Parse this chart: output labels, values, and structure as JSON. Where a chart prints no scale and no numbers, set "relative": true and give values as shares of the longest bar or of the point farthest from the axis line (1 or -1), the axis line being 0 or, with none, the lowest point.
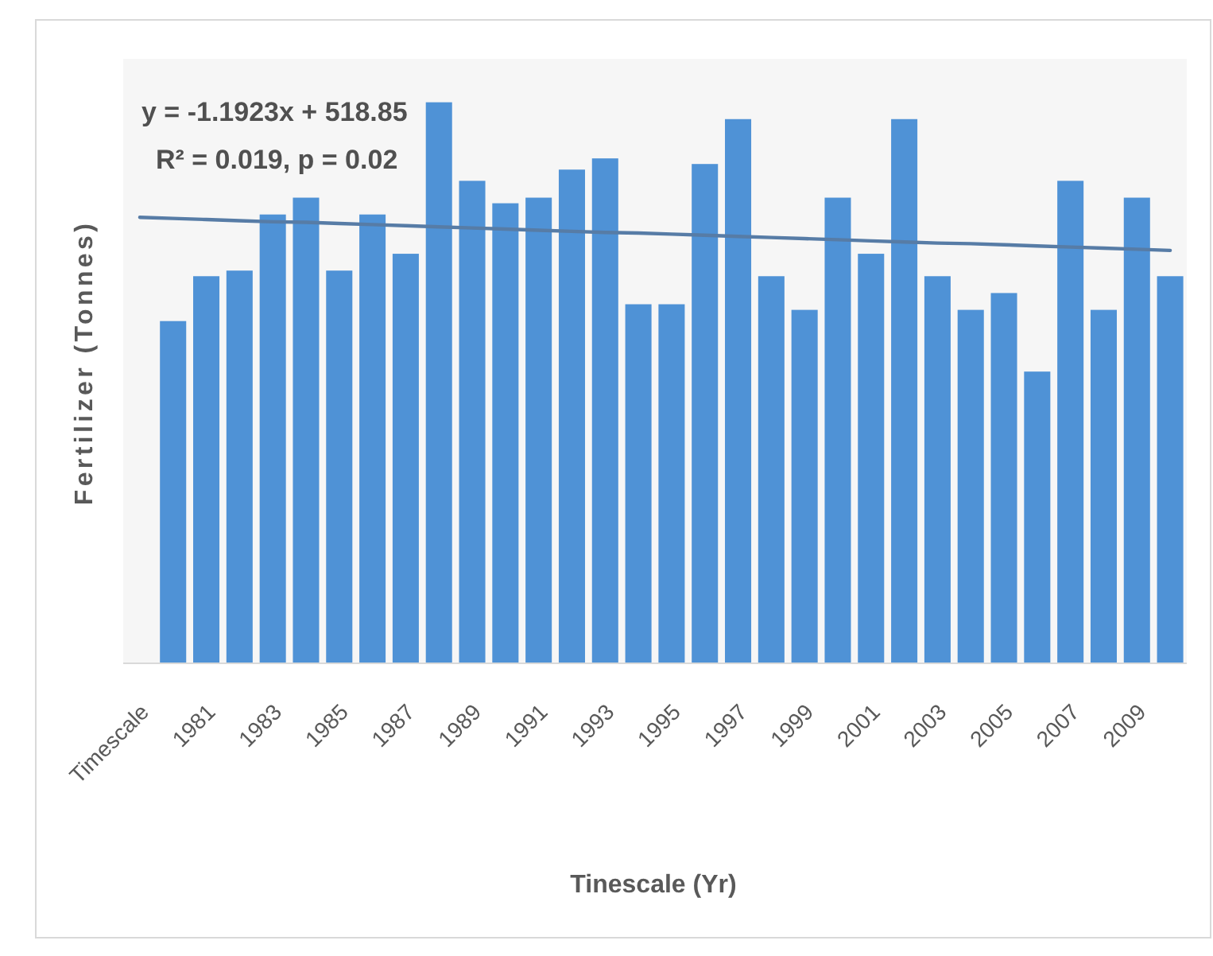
{
  "chart_data": {
    "type": "bar",
    "relative": true,
    "xlabel": "Tinescale (Yr)",
    "ylabel": "Fertilizer (Tonnes)",
    "annotations": [
      "y = -1.1923x + 518.85",
      "R² = 0.019, p = 0.02"
    ],
    "categories": [
      "Timescale",
      null,
      "1981",
      null,
      "1983",
      null,
      "1985",
      null,
      "1987",
      null,
      "1989",
      null,
      "1991",
      null,
      "1993",
      null,
      "1995",
      null,
      "1997",
      null,
      "1999",
      null,
      "2001",
      null,
      "2003",
      null,
      "2005",
      null,
      "2007",
      null,
      "2009",
      null
    ],
    "series": [
      {
        "color": "#4f92d6",
        "values": [
          null,
          0.61,
          0.69,
          0.7,
          0.8,
          0.83,
          0.7,
          0.8,
          0.73,
          1,
          0.86,
          0.82,
          0.83,
          0.88,
          0.9,
          0.64,
          0.64,
          0.89,
          0.97,
          0.69,
          0.63,
          0.83,
          0.73,
          0.97,
          0.69,
          0.63,
          0.66,
          0.52,
          0.86,
          0.63,
          0.83,
          0.69
        ]
      },
      {
        "type": "line",
        "color": "#577ca6",
        "values": [
          0.795,
          0.793,
          0.791,
          0.789,
          0.787,
          0.786,
          0.784,
          0.782,
          0.78,
          0.778,
          0.776,
          0.774,
          0.772,
          0.77,
          0.768,
          0.767,
          0.765,
          0.763,
          0.761,
          0.759,
          0.757,
          0.755,
          0.753,
          0.751,
          0.749,
          0.748,
          0.746,
          0.744,
          0.742,
          0.74,
          0.738,
          0.736
        ]
      }
    ]
  }
}
